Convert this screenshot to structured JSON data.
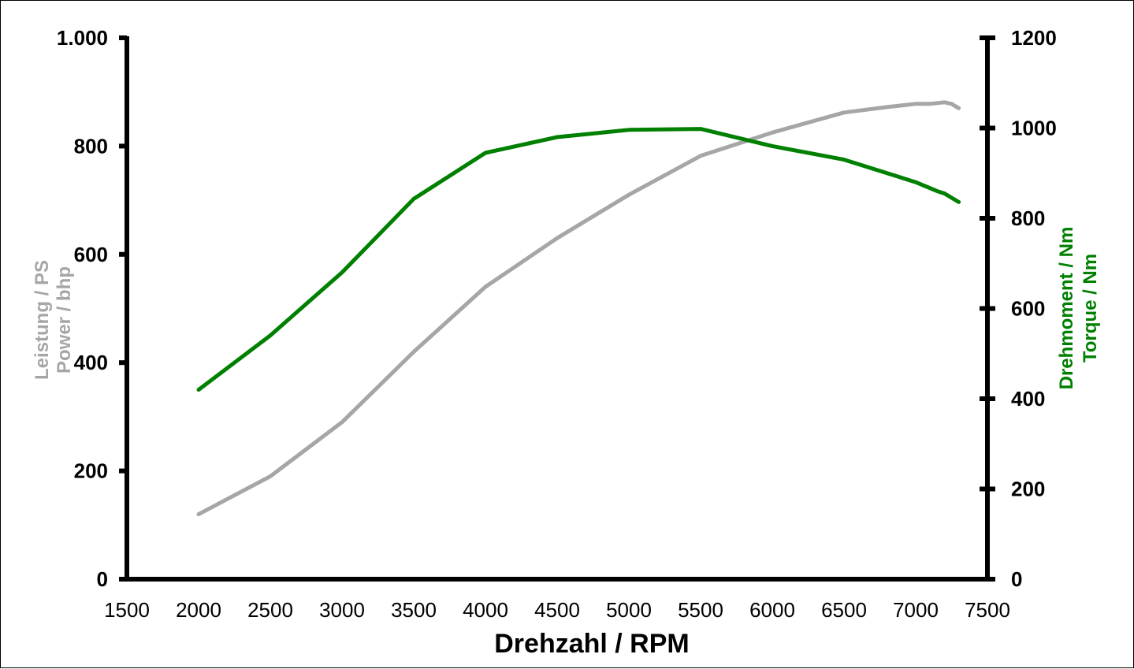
{
  "chart_data": {
    "type": "line",
    "xlabel": "Drehzahl / RPM",
    "ylabel_left": [
      "Leistung / PS",
      "Power / bhp"
    ],
    "ylabel_right": [
      "Drehmoment / Nm",
      "Torque / Nm"
    ],
    "xlim": [
      1500,
      7500
    ],
    "ylim_left": [
      0,
      1000
    ],
    "ylim_right": [
      0,
      1200
    ],
    "x_ticks": [
      1500,
      2000,
      2500,
      3000,
      3500,
      4000,
      4500,
      5000,
      5500,
      6000,
      6500,
      7000,
      7500
    ],
    "x_tick_labels": [
      "1500",
      "2000",
      "2500",
      "3000",
      "3500",
      "4000",
      "4500",
      "5000",
      "5500",
      "6000",
      "6500",
      "7000",
      "7500"
    ],
    "y_left_ticks": [
      0,
      200,
      400,
      600,
      800,
      1000
    ],
    "y_left_tick_labels": [
      "0",
      "200",
      "400",
      "600",
      "800",
      "1.000"
    ],
    "y_right_ticks": [
      0,
      200,
      400,
      600,
      800,
      1000,
      1200
    ],
    "y_right_tick_labels": [
      "0",
      "200",
      "400",
      "600",
      "800",
      "1000",
      "1200"
    ],
    "grid": false,
    "series": [
      {
        "axis": "left",
        "color": "#a6a6a6",
        "points": [
          [
            2000,
            120
          ],
          [
            2500,
            190
          ],
          [
            3000,
            290
          ],
          [
            3500,
            420
          ],
          [
            4000,
            540
          ],
          [
            4500,
            630
          ],
          [
            5000,
            710
          ],
          [
            5500,
            782
          ],
          [
            6000,
            825
          ],
          [
            6500,
            862
          ],
          [
            6800,
            872
          ],
          [
            7000,
            878
          ],
          [
            7100,
            878
          ],
          [
            7200,
            881
          ],
          [
            7250,
            878
          ],
          [
            7300,
            870
          ]
        ]
      },
      {
        "axis": "right",
        "color": "#008000",
        "points": [
          [
            2000,
            420
          ],
          [
            2500,
            540
          ],
          [
            3000,
            680
          ],
          [
            3500,
            843
          ],
          [
            4000,
            945
          ],
          [
            4500,
            980
          ],
          [
            5000,
            996
          ],
          [
            5500,
            998
          ],
          [
            6000,
            960
          ],
          [
            6500,
            930
          ],
          [
            7000,
            880
          ],
          [
            7150,
            860
          ],
          [
            7200,
            855
          ],
          [
            7300,
            836
          ]
        ]
      }
    ]
  }
}
